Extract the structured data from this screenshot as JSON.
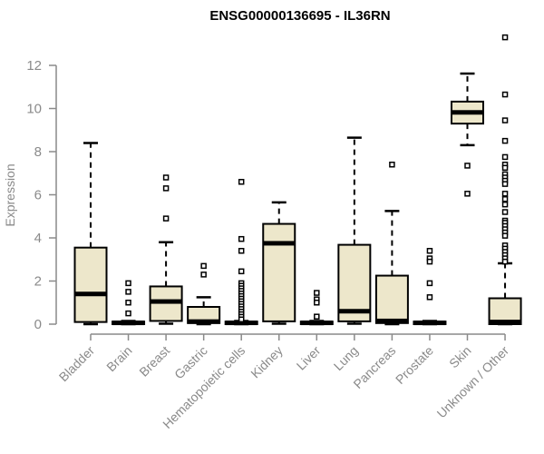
{
  "chart_data": {
    "type": "boxplot",
    "title": "ENSG00000136695 - IL36RN",
    "ylabel": "Expression",
    "xlabel": "",
    "ylim": [
      0,
      13.5
    ],
    "yticks": [
      0,
      2,
      4,
      6,
      8,
      10,
      12
    ],
    "grid": "off",
    "legend": "none",
    "categories": [
      "Bladder",
      "Brain",
      "Breast",
      "Gastric",
      "Hematopoietic cells",
      "Kidney",
      "Liver",
      "Lung",
      "Pancreas",
      "Prostate",
      "Skin",
      "Unknown / Other"
    ],
    "boxes": [
      {
        "category": "Bladder",
        "whisker_low": 0,
        "q1": 0.1,
        "median": 1.4,
        "q3": 3.55,
        "whisker_high": 8.4,
        "outliers": []
      },
      {
        "category": "Brain",
        "whisker_low": 0,
        "q1": 0,
        "median": 0.06,
        "q3": 0.12,
        "whisker_high": 0.15,
        "outliers": [
          1.9,
          1.5,
          1.0,
          0.5
        ]
      },
      {
        "category": "Breast",
        "whisker_low": 0.02,
        "q1": 0.15,
        "median": 1.05,
        "q3": 1.75,
        "whisker_high": 3.8,
        "outliers": [
          6.8,
          6.3,
          4.9
        ]
      },
      {
        "category": "Gastric",
        "whisker_low": 0,
        "q1": 0.05,
        "median": 0.12,
        "q3": 0.8,
        "whisker_high": 1.25,
        "outliers": [
          2.7,
          2.3
        ]
      },
      {
        "category": "Hematopoietic cells",
        "whisker_low": 0,
        "q1": 0,
        "median": 0.06,
        "q3": 0.12,
        "whisker_high": 0.15,
        "outliers": [
          6.6,
          3.95,
          3.4,
          2.45,
          1.9,
          1.78,
          1.66,
          1.54,
          1.42,
          1.3,
          1.18,
          1.06,
          0.94,
          0.82,
          0.7,
          0.58,
          0.46,
          0.34,
          0.22
        ]
      },
      {
        "category": "Kidney",
        "whisker_low": 0.02,
        "q1": 0.13,
        "median": 3.75,
        "q3": 4.65,
        "whisker_high": 5.65,
        "outliers": []
      },
      {
        "category": "Liver",
        "whisker_low": 0,
        "q1": 0,
        "median": 0.06,
        "q3": 0.12,
        "whisker_high": 0.15,
        "outliers": [
          1.45,
          1.15,
          1.0,
          0.35
        ]
      },
      {
        "category": "Lung",
        "whisker_low": 0.02,
        "q1": 0.13,
        "median": 0.6,
        "q3": 3.68,
        "whisker_high": 8.65,
        "outliers": []
      },
      {
        "category": "Pancreas",
        "whisker_low": 0,
        "q1": 0.05,
        "median": 0.15,
        "q3": 2.25,
        "whisker_high": 5.25,
        "outliers": [
          7.4
        ]
      },
      {
        "category": "Prostate",
        "whisker_low": 0,
        "q1": 0,
        "median": 0.06,
        "q3": 0.12,
        "whisker_high": 0.15,
        "outliers": [
          3.4,
          3.05,
          2.9,
          1.9,
          1.25
        ]
      },
      {
        "category": "Skin",
        "whisker_low": 8.3,
        "q1": 9.3,
        "median": 9.82,
        "q3": 10.32,
        "whisker_high": 11.62,
        "outliers": [
          7.35,
          6.05
        ]
      },
      {
        "category": "Unknown / Other",
        "whisker_low": 0,
        "q1": 0,
        "median": 0.1,
        "q3": 1.2,
        "whisker_high": 2.82,
        "outliers": [
          13.3,
          10.65,
          9.45,
          8.5,
          7.75,
          7.4,
          7.25,
          6.95,
          6.8,
          6.65,
          6.5,
          6.05,
          5.8,
          5.55,
          5.2,
          4.8,
          4.7,
          4.55,
          4.4,
          4.25,
          4.1,
          3.65,
          3.5,
          3.35,
          3.2,
          3.05,
          2.9
        ]
      }
    ],
    "colors": {
      "box_fill": "#EDE7CB",
      "box_border": "#000000",
      "median": "#000000",
      "whisker": "#000000",
      "outlier_stroke": "#000000",
      "outlier_fill": "#FFFFFF",
      "axis": "#8a8a8a",
      "tick_label": "#8a8a8a",
      "title": "#000000",
      "background": "#FFFFFF"
    }
  }
}
